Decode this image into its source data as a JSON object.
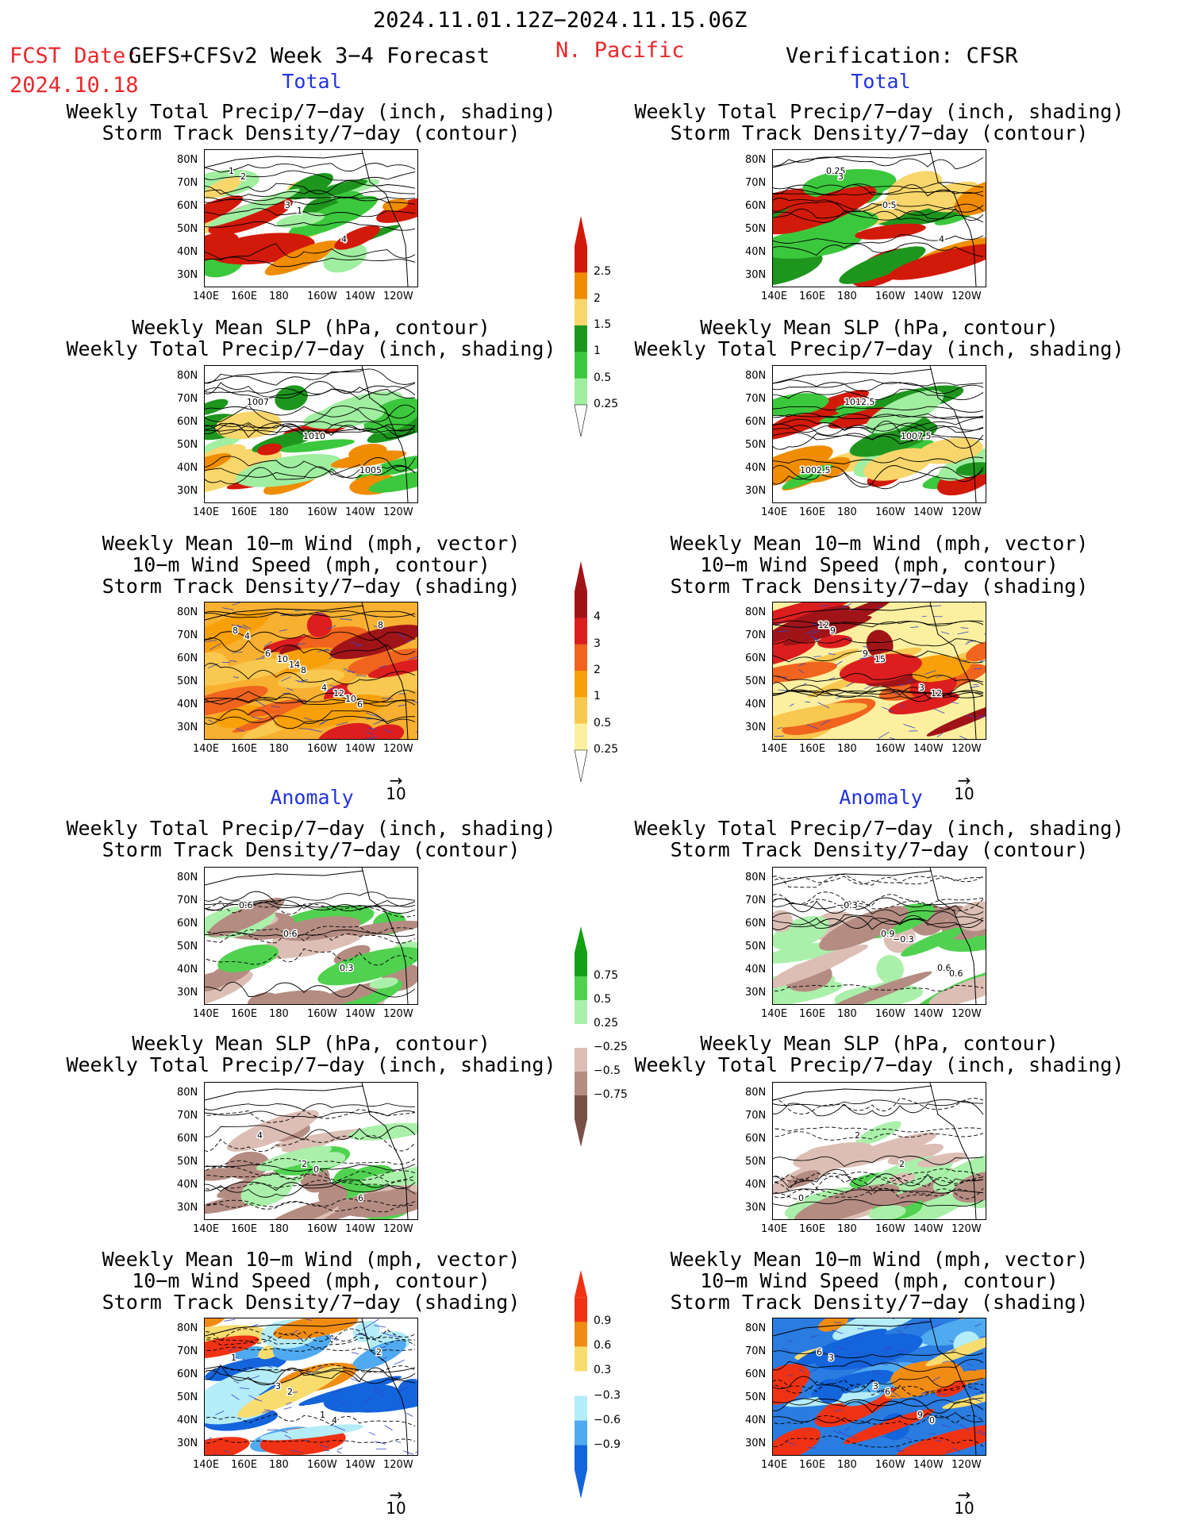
{
  "header": {
    "period": "2024.11.01.12Z−2024.11.15.06Z",
    "fcst_label": "FCST Date:",
    "fcst_model": "GEFS+CFSv2 Week 3−4 Forecast",
    "fcst_date": "2024.10.18",
    "region": "N. Pacific",
    "verification": "Verification: CFSR"
  },
  "sections": {
    "total": "Total",
    "anomaly": "Anomaly"
  },
  "titles": {
    "precip_storm": [
      "Weekly Total Precip/7−day (inch, shading)",
      "Storm Track Density/7−day (contour)"
    ],
    "slp_precip": [
      "Weekly Mean SLP (hPa, contour)",
      "Weekly Total Precip/7−day (inch, shading)"
    ],
    "wind_storm": [
      "Weekly Mean 10−m Wind (mph, vector)",
      "10−m Wind Speed (mph, contour)",
      "Storm Track Density/7−day (shading)"
    ]
  },
  "axes": {
    "lat": [
      "80N",
      "70N",
      "60N",
      "50N",
      "40N",
      "30N"
    ],
    "lon": [
      "140E",
      "160E",
      "180",
      "160W",
      "140W",
      "120W"
    ]
  },
  "vector_ref": "10",
  "colorbars": {
    "precip_total": {
      "labels": [
        "2.5",
        "2",
        "1.5",
        "1",
        "0.5",
        "0.25"
      ],
      "colors": [
        "#d21a0a",
        "#f08c00",
        "#f8d66c",
        "#1e961e",
        "#3cc83c",
        "#a0eea0"
      ]
    },
    "storm_total": {
      "labels": [
        "4",
        "3",
        "2",
        "1",
        "0.5",
        "0.25"
      ],
      "colors": [
        "#a01418",
        "#dc1e1e",
        "#f0641e",
        "#f8a00a",
        "#f8c850",
        "#fcf0a0"
      ]
    },
    "precip_anom": {
      "labels": [
        "0.75",
        "0.5",
        "0.25",
        "−0.25",
        "−0.5",
        "−0.75"
      ],
      "colors": [
        "#14a014",
        "#50d250",
        "#aaf0aa",
        "#ffffff",
        "#dcbeb4",
        "#b48c82",
        "#785046"
      ]
    },
    "storm_anom": {
      "labels": [
        "0.9",
        "0.6",
        "0.3",
        "−0.3",
        "−0.6",
        "−0.9"
      ],
      "colors": [
        "#f03214",
        "#f08c14",
        "#f8dc6e",
        "#ffffff",
        "#b4ecf8",
        "#50aaf0",
        "#1464dc"
      ]
    }
  },
  "contour_labels": {
    "p1": [
      "1",
      "3",
      "4",
      "2",
      "1"
    ],
    "p2": [
      "1007",
      "1010",
      "1005"
    ],
    "p3": [
      "6",
      "4",
      "8",
      "10",
      "12",
      "8",
      "14",
      "10",
      "4",
      "8",
      "6"
    ],
    "p4": [
      "0.6",
      "0.3",
      "0.6"
    ],
    "p5": [
      "2",
      "6",
      "4",
      "0"
    ],
    "p6": [
      "1",
      "2",
      "3",
      "4",
      "1",
      "2"
    ],
    "v1": [
      "0.25",
      "0.5",
      "4",
      "3"
    ],
    "v2": [
      "1012.5",
      "1007.5",
      "1002.5"
    ],
    "v3": [
      "9",
      "3",
      "12",
      "15",
      "12",
      "9"
    ],
    "v4": [
      "0.9",
      "0.6",
      "−0.3",
      "−0.3",
      "0.6"
    ],
    "v5": [
      "2",
      "0",
      "2"
    ],
    "v6": [
      "9",
      "6",
      "3",
      "0",
      "3",
      "6"
    ]
  }
}
